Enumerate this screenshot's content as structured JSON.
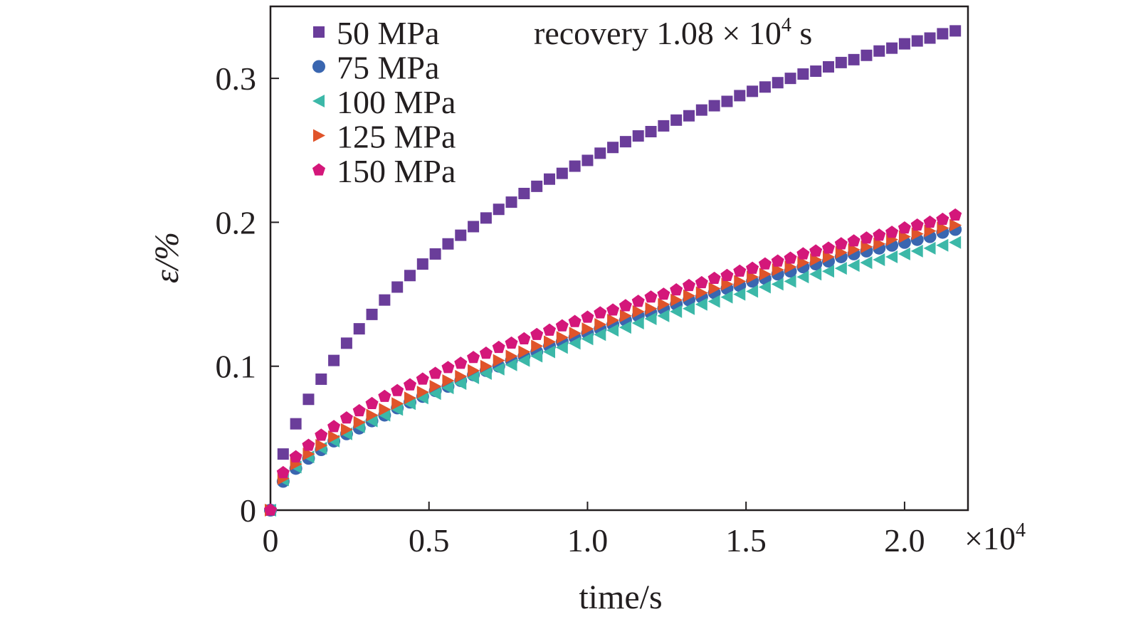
{
  "chart_data": {
    "type": "scatter",
    "title": "",
    "xlabel": "time/s",
    "ylabel": "ε/%",
    "x_multiplier_label": "×10",
    "x_multiplier_exponent": "4",
    "annotation": {
      "text": "recovery 1.08 × 10",
      "exponent": "4",
      "suffix": " s"
    },
    "xlim": [
      0,
      22000
    ],
    "ylim": [
      0,
      0.35
    ],
    "x_ticks": [
      {
        "value": 0,
        "label": "0"
      },
      {
        "value": 5000,
        "label": "0.5"
      },
      {
        "value": 10000,
        "label": "1.0"
      },
      {
        "value": 15000,
        "label": "1.5"
      },
      {
        "value": 20000,
        "label": "2.0"
      }
    ],
    "y_ticks": [
      {
        "value": 0,
        "label": "0"
      },
      {
        "value": 0.1,
        "label": "0.1"
      },
      {
        "value": 0.2,
        "label": "0.2"
      },
      {
        "value": 0.3,
        "label": "0.3"
      }
    ],
    "grid": false,
    "legend_position": "top-left",
    "x": [
      0,
      400,
      800,
      1200,
      1600,
      2000,
      2400,
      2800,
      3200,
      3600,
      4000,
      4400,
      4800,
      5200,
      5600,
      6000,
      6400,
      6800,
      7200,
      7600,
      8000,
      8400,
      8800,
      9200,
      9600,
      10000,
      10400,
      10800,
      11200,
      11600,
      12000,
      12400,
      12800,
      13200,
      13600,
      14000,
      14400,
      14800,
      15200,
      15600,
      16000,
      16400,
      16800,
      17200,
      17600,
      18000,
      18400,
      18800,
      19200,
      19600,
      20000,
      20400,
      20800,
      21200,
      21600
    ],
    "series": [
      {
        "name": "50 MPa",
        "marker": "square",
        "color": "#6a3d9a",
        "values": [
          0,
          0.039,
          0.06,
          0.077,
          0.091,
          0.104,
          0.116,
          0.126,
          0.136,
          0.146,
          0.155,
          0.163,
          0.171,
          0.178,
          0.185,
          0.191,
          0.197,
          0.203,
          0.209,
          0.214,
          0.22,
          0.225,
          0.23,
          0.234,
          0.239,
          0.243,
          0.248,
          0.252,
          0.256,
          0.26,
          0.263,
          0.267,
          0.271,
          0.274,
          0.278,
          0.281,
          0.284,
          0.288,
          0.291,
          0.294,
          0.297,
          0.3,
          0.303,
          0.305,
          0.308,
          0.311,
          0.313,
          0.316,
          0.319,
          0.321,
          0.324,
          0.326,
          0.328,
          0.331,
          0.333
        ]
      },
      {
        "name": "75 MPa",
        "marker": "circle",
        "color": "#3a66b0",
        "values": [
          0,
          0.02,
          0.029,
          0.036,
          0.042,
          0.048,
          0.053,
          0.057,
          0.062,
          0.066,
          0.071,
          0.075,
          0.079,
          0.083,
          0.086,
          0.09,
          0.094,
          0.097,
          0.1,
          0.104,
          0.107,
          0.11,
          0.114,
          0.117,
          0.12,
          0.123,
          0.126,
          0.129,
          0.132,
          0.135,
          0.137,
          0.14,
          0.143,
          0.146,
          0.148,
          0.151,
          0.154,
          0.156,
          0.159,
          0.161,
          0.164,
          0.166,
          0.169,
          0.171,
          0.173,
          0.176,
          0.178,
          0.18,
          0.182,
          0.184,
          0.186,
          0.188,
          0.19,
          0.193,
          0.195
        ]
      },
      {
        "name": "100 MPa",
        "marker": "triangle-left",
        "color": "#3cb8a8",
        "values": [
          0,
          0.021,
          0.03,
          0.037,
          0.043,
          0.048,
          0.053,
          0.058,
          0.062,
          0.066,
          0.07,
          0.074,
          0.078,
          0.081,
          0.085,
          0.088,
          0.092,
          0.095,
          0.098,
          0.101,
          0.104,
          0.107,
          0.11,
          0.113,
          0.116,
          0.119,
          0.122,
          0.125,
          0.127,
          0.13,
          0.133,
          0.135,
          0.138,
          0.14,
          0.143,
          0.145,
          0.148,
          0.15,
          0.152,
          0.155,
          0.157,
          0.159,
          0.162,
          0.164,
          0.166,
          0.168,
          0.17,
          0.172,
          0.174,
          0.176,
          0.178,
          0.18,
          0.182,
          0.184,
          0.186
        ]
      },
      {
        "name": "125 MPa",
        "marker": "triangle-right",
        "color": "#e0542a",
        "values": [
          0,
          0.022,
          0.032,
          0.039,
          0.045,
          0.051,
          0.056,
          0.061,
          0.066,
          0.07,
          0.074,
          0.078,
          0.082,
          0.086,
          0.09,
          0.093,
          0.097,
          0.1,
          0.104,
          0.107,
          0.11,
          0.114,
          0.117,
          0.12,
          0.123,
          0.126,
          0.129,
          0.132,
          0.135,
          0.138,
          0.14,
          0.143,
          0.146,
          0.149,
          0.151,
          0.154,
          0.157,
          0.159,
          0.162,
          0.164,
          0.167,
          0.169,
          0.172,
          0.174,
          0.176,
          0.179,
          0.181,
          0.183,
          0.185,
          0.188,
          0.19,
          0.192,
          0.194,
          0.196,
          0.198
        ]
      },
      {
        "name": "150 MPa",
        "marker": "pentagon",
        "color": "#d4177a",
        "values": [
          0,
          0.026,
          0.037,
          0.045,
          0.052,
          0.058,
          0.064,
          0.069,
          0.074,
          0.079,
          0.083,
          0.087,
          0.091,
          0.095,
          0.099,
          0.102,
          0.106,
          0.109,
          0.113,
          0.116,
          0.119,
          0.122,
          0.125,
          0.128,
          0.131,
          0.134,
          0.137,
          0.139,
          0.142,
          0.145,
          0.148,
          0.15,
          0.153,
          0.156,
          0.158,
          0.161,
          0.163,
          0.166,
          0.168,
          0.171,
          0.173,
          0.175,
          0.178,
          0.18,
          0.182,
          0.185,
          0.187,
          0.189,
          0.191,
          0.193,
          0.196,
          0.198,
          0.2,
          0.202,
          0.205
        ]
      }
    ]
  }
}
